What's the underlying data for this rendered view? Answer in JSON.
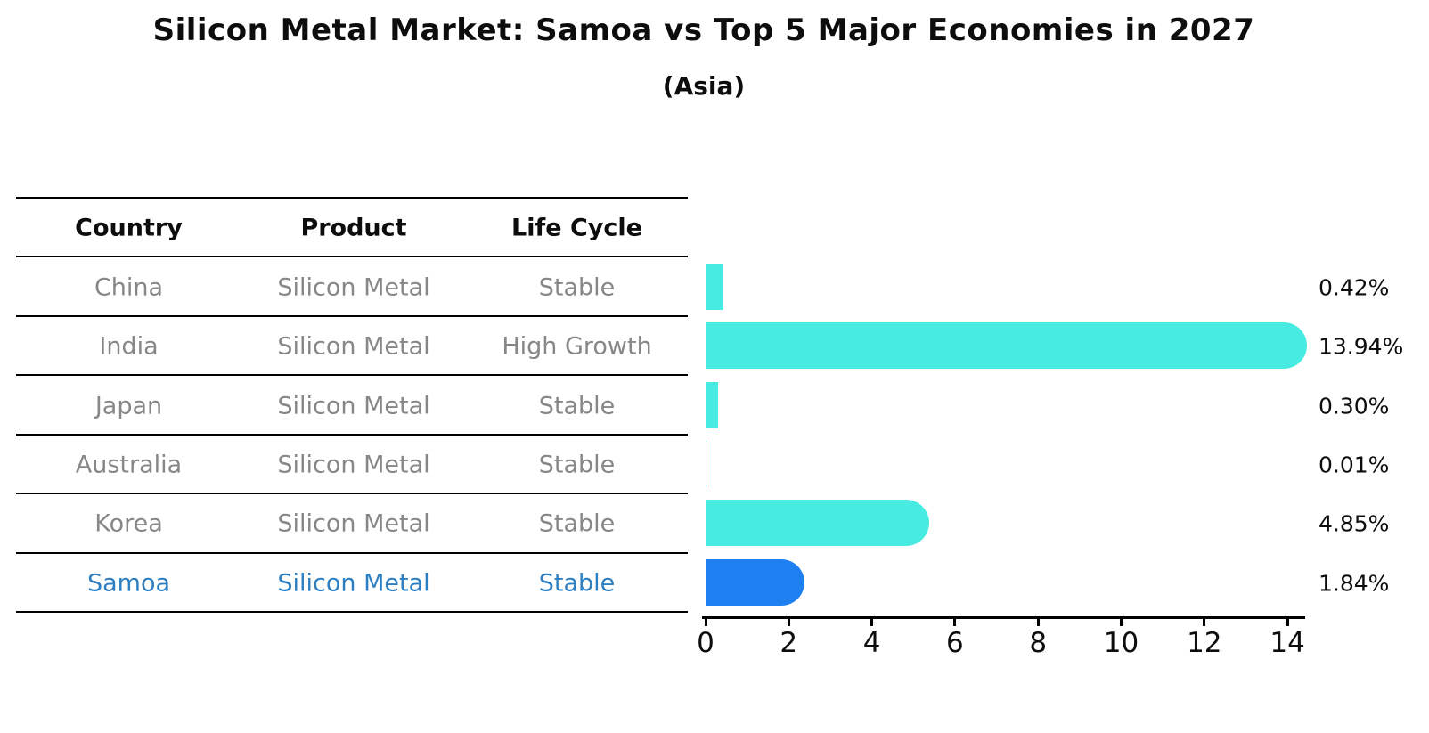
{
  "title": "Silicon Metal Market: Samoa vs Top 5 Major Economies in 2027",
  "subtitle": "(Asia)",
  "table": {
    "headers": [
      "Country",
      "Product",
      "Life Cycle"
    ],
    "rows": [
      {
        "country": "China",
        "product": "Silicon Metal",
        "life_cycle": "Stable",
        "highlight": false
      },
      {
        "country": "India",
        "product": "Silicon Metal",
        "life_cycle": "High Growth",
        "highlight": false
      },
      {
        "country": "Japan",
        "product": "Silicon Metal",
        "life_cycle": "Stable",
        "highlight": false
      },
      {
        "country": "Australia",
        "product": "Silicon Metal",
        "life_cycle": "Stable",
        "highlight": false
      },
      {
        "country": "Korea",
        "product": "Silicon Metal",
        "life_cycle": "Stable",
        "highlight": false
      },
      {
        "country": "Samoa",
        "product": "Silicon Metal",
        "life_cycle": "Stable",
        "highlight": true
      }
    ]
  },
  "chart_data": {
    "type": "bar",
    "orientation": "horizontal",
    "title": "Silicon Metal Market: Samoa vs Top 5 Major Economies in 2027",
    "subtitle": "(Asia)",
    "categories": [
      "China",
      "India",
      "Japan",
      "Australia",
      "Korea",
      "Samoa"
    ],
    "values": [
      0.42,
      13.94,
      0.3,
      0.01,
      4.85,
      1.84
    ],
    "value_labels": [
      "0.42%",
      "13.94%",
      "0.30%",
      "0.01%",
      "4.85%",
      "1.84%"
    ],
    "highlight_index": 5,
    "x_ticks": [
      "0",
      "2",
      "4",
      "6",
      "8",
      "10",
      "12",
      "14"
    ],
    "xlim": [
      0,
      14
    ],
    "grid": false,
    "legend": false
  },
  "colors": {
    "bar": "#47ebe1",
    "highlight_bar": "#1e80f0",
    "highlight_text": "#2e7fc1",
    "table_text": "#878787",
    "header_text": "#0d0d0d",
    "line": "#000000"
  }
}
